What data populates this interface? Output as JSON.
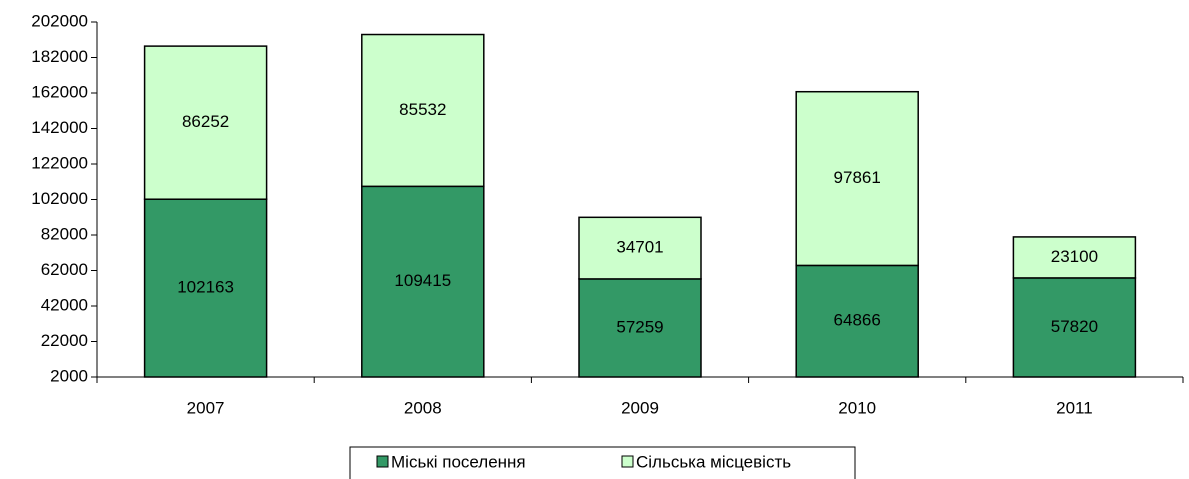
{
  "chart_data": {
    "type": "stacked_bar",
    "categories": [
      "2007",
      "2008",
      "2009",
      "2010",
      "2011"
    ],
    "series": [
      {
        "name": "Міські поселення",
        "color": "#339966",
        "values": [
          102163,
          109415,
          57259,
          64866,
          57820
        ]
      },
      {
        "name": "Сільська місцевість",
        "color": "#ccffcc",
        "values": [
          86252,
          85532,
          34701,
          97861,
          23100
        ]
      }
    ],
    "ylim": [
      2000,
      202000
    ],
    "yticks": [
      2000,
      22000,
      42000,
      62000,
      82000,
      102000,
      122000,
      142000,
      162000,
      182000,
      202000
    ],
    "legend": "bottom"
  }
}
